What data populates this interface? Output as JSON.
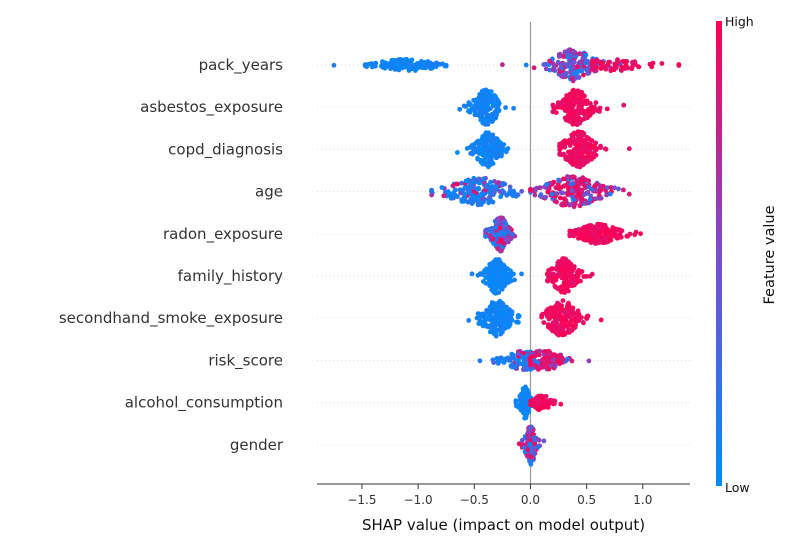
{
  "chart_data": {
    "type": "scatter",
    "subtype": "shap-beeswarm",
    "title": "",
    "xlabel": "SHAP value (impact on model output)",
    "xlim": [
      -1.9,
      1.42
    ],
    "xticks": [
      -1.5,
      -1.0,
      -0.5,
      0.0,
      0.5,
      1.0
    ],
    "xtick_labels": [
      "−1.5",
      "−1.0",
      "−0.5",
      "0.0",
      "0.5",
      "1.0"
    ],
    "zero_line": 0,
    "colorbar": {
      "title": "Feature value",
      "high_label": "High",
      "low_label": "Low",
      "low_color": "#008bfb",
      "mid_color": "#7b4ccf",
      "high_color": "#ff0051"
    },
    "features": [
      {
        "name": "pack_years",
        "clusters": [
          {
            "center": -1.1,
            "spread": 0.18,
            "min": -1.75,
            "max": -0.75,
            "height": 6,
            "color": "low",
            "n": 120
          },
          {
            "center": 0.38,
            "spread": 0.12,
            "min": -0.25,
            "max": 1.32,
            "height": 16,
            "color": "mixed",
            "n": 170
          },
          {
            "center": 0.72,
            "spread": 0.2,
            "min": 0.55,
            "max": 1.32,
            "height": 6,
            "color": "high",
            "n": 60
          }
        ]
      },
      {
        "name": "asbestos_exposure",
        "clusters": [
          {
            "center": -0.39,
            "spread": 0.07,
            "min": -0.63,
            "max": -0.15,
            "height": 18,
            "color": "low",
            "n": 180
          },
          {
            "center": 0.4,
            "spread": 0.09,
            "min": 0.2,
            "max": 0.83,
            "height": 18,
            "color": "high",
            "n": 180
          }
        ]
      },
      {
        "name": "copd_diagnosis",
        "clusters": [
          {
            "center": -0.38,
            "spread": 0.07,
            "min": -0.65,
            "max": -0.2,
            "height": 18,
            "color": "low",
            "n": 180
          },
          {
            "center": 0.43,
            "spread": 0.09,
            "min": 0.26,
            "max": 0.88,
            "height": 18,
            "color": "high",
            "n": 180
          }
        ]
      },
      {
        "name": "age",
        "clusters": [
          {
            "center": -0.45,
            "spread": 0.18,
            "min": -0.88,
            "max": 0.0,
            "height": 14,
            "color": "mixed-low",
            "n": 180
          },
          {
            "center": 0.38,
            "spread": 0.16,
            "min": 0.0,
            "max": 0.88,
            "height": 16,
            "color": "mixed-high",
            "n": 200
          }
        ]
      },
      {
        "name": "radon_exposure",
        "clusters": [
          {
            "center": -0.27,
            "spread": 0.05,
            "min": -0.4,
            "max": -0.14,
            "height": 18,
            "color": "mixed",
            "n": 150
          },
          {
            "center": 0.6,
            "spread": 0.12,
            "min": 0.35,
            "max": 0.98,
            "height": 10,
            "color": "high",
            "n": 220
          }
        ]
      },
      {
        "name": "family_history",
        "clusters": [
          {
            "center": -0.3,
            "spread": 0.06,
            "min": -0.52,
            "max": -0.08,
            "height": 18,
            "color": "low",
            "n": 170
          },
          {
            "center": 0.3,
            "spread": 0.07,
            "min": 0.15,
            "max": 0.55,
            "height": 18,
            "color": "high",
            "n": 170
          }
        ]
      },
      {
        "name": "secondhand_smoke_exposure",
        "clusters": [
          {
            "center": -0.3,
            "spread": 0.08,
            "min": -0.55,
            "max": -0.1,
            "height": 18,
            "color": "low",
            "n": 170
          },
          {
            "center": 0.28,
            "spread": 0.09,
            "min": 0.1,
            "max": 0.63,
            "height": 18,
            "color": "high",
            "n": 170
          }
        ]
      },
      {
        "name": "risk_score",
        "clusters": [
          {
            "center": -0.05,
            "spread": 0.12,
            "min": -0.45,
            "max": 0.0,
            "height": 10,
            "color": "mixed-low",
            "n": 140
          },
          {
            "center": 0.12,
            "spread": 0.12,
            "min": 0.0,
            "max": 0.52,
            "height": 10,
            "color": "mixed-high",
            "n": 140
          }
        ]
      },
      {
        "name": "alcohol_consumption",
        "clusters": [
          {
            "center": -0.05,
            "spread": 0.03,
            "min": -0.13,
            "max": 0.01,
            "height": 16,
            "color": "low",
            "n": 110
          },
          {
            "center": 0.1,
            "spread": 0.05,
            "min": 0.0,
            "max": 0.27,
            "height": 8,
            "color": "high",
            "n": 70
          }
        ]
      },
      {
        "name": "gender",
        "clusters": [
          {
            "center": 0.0,
            "spread": 0.03,
            "min": -0.1,
            "max": 0.12,
            "height": 20,
            "color": "mixed",
            "n": 130
          }
        ]
      }
    ]
  }
}
